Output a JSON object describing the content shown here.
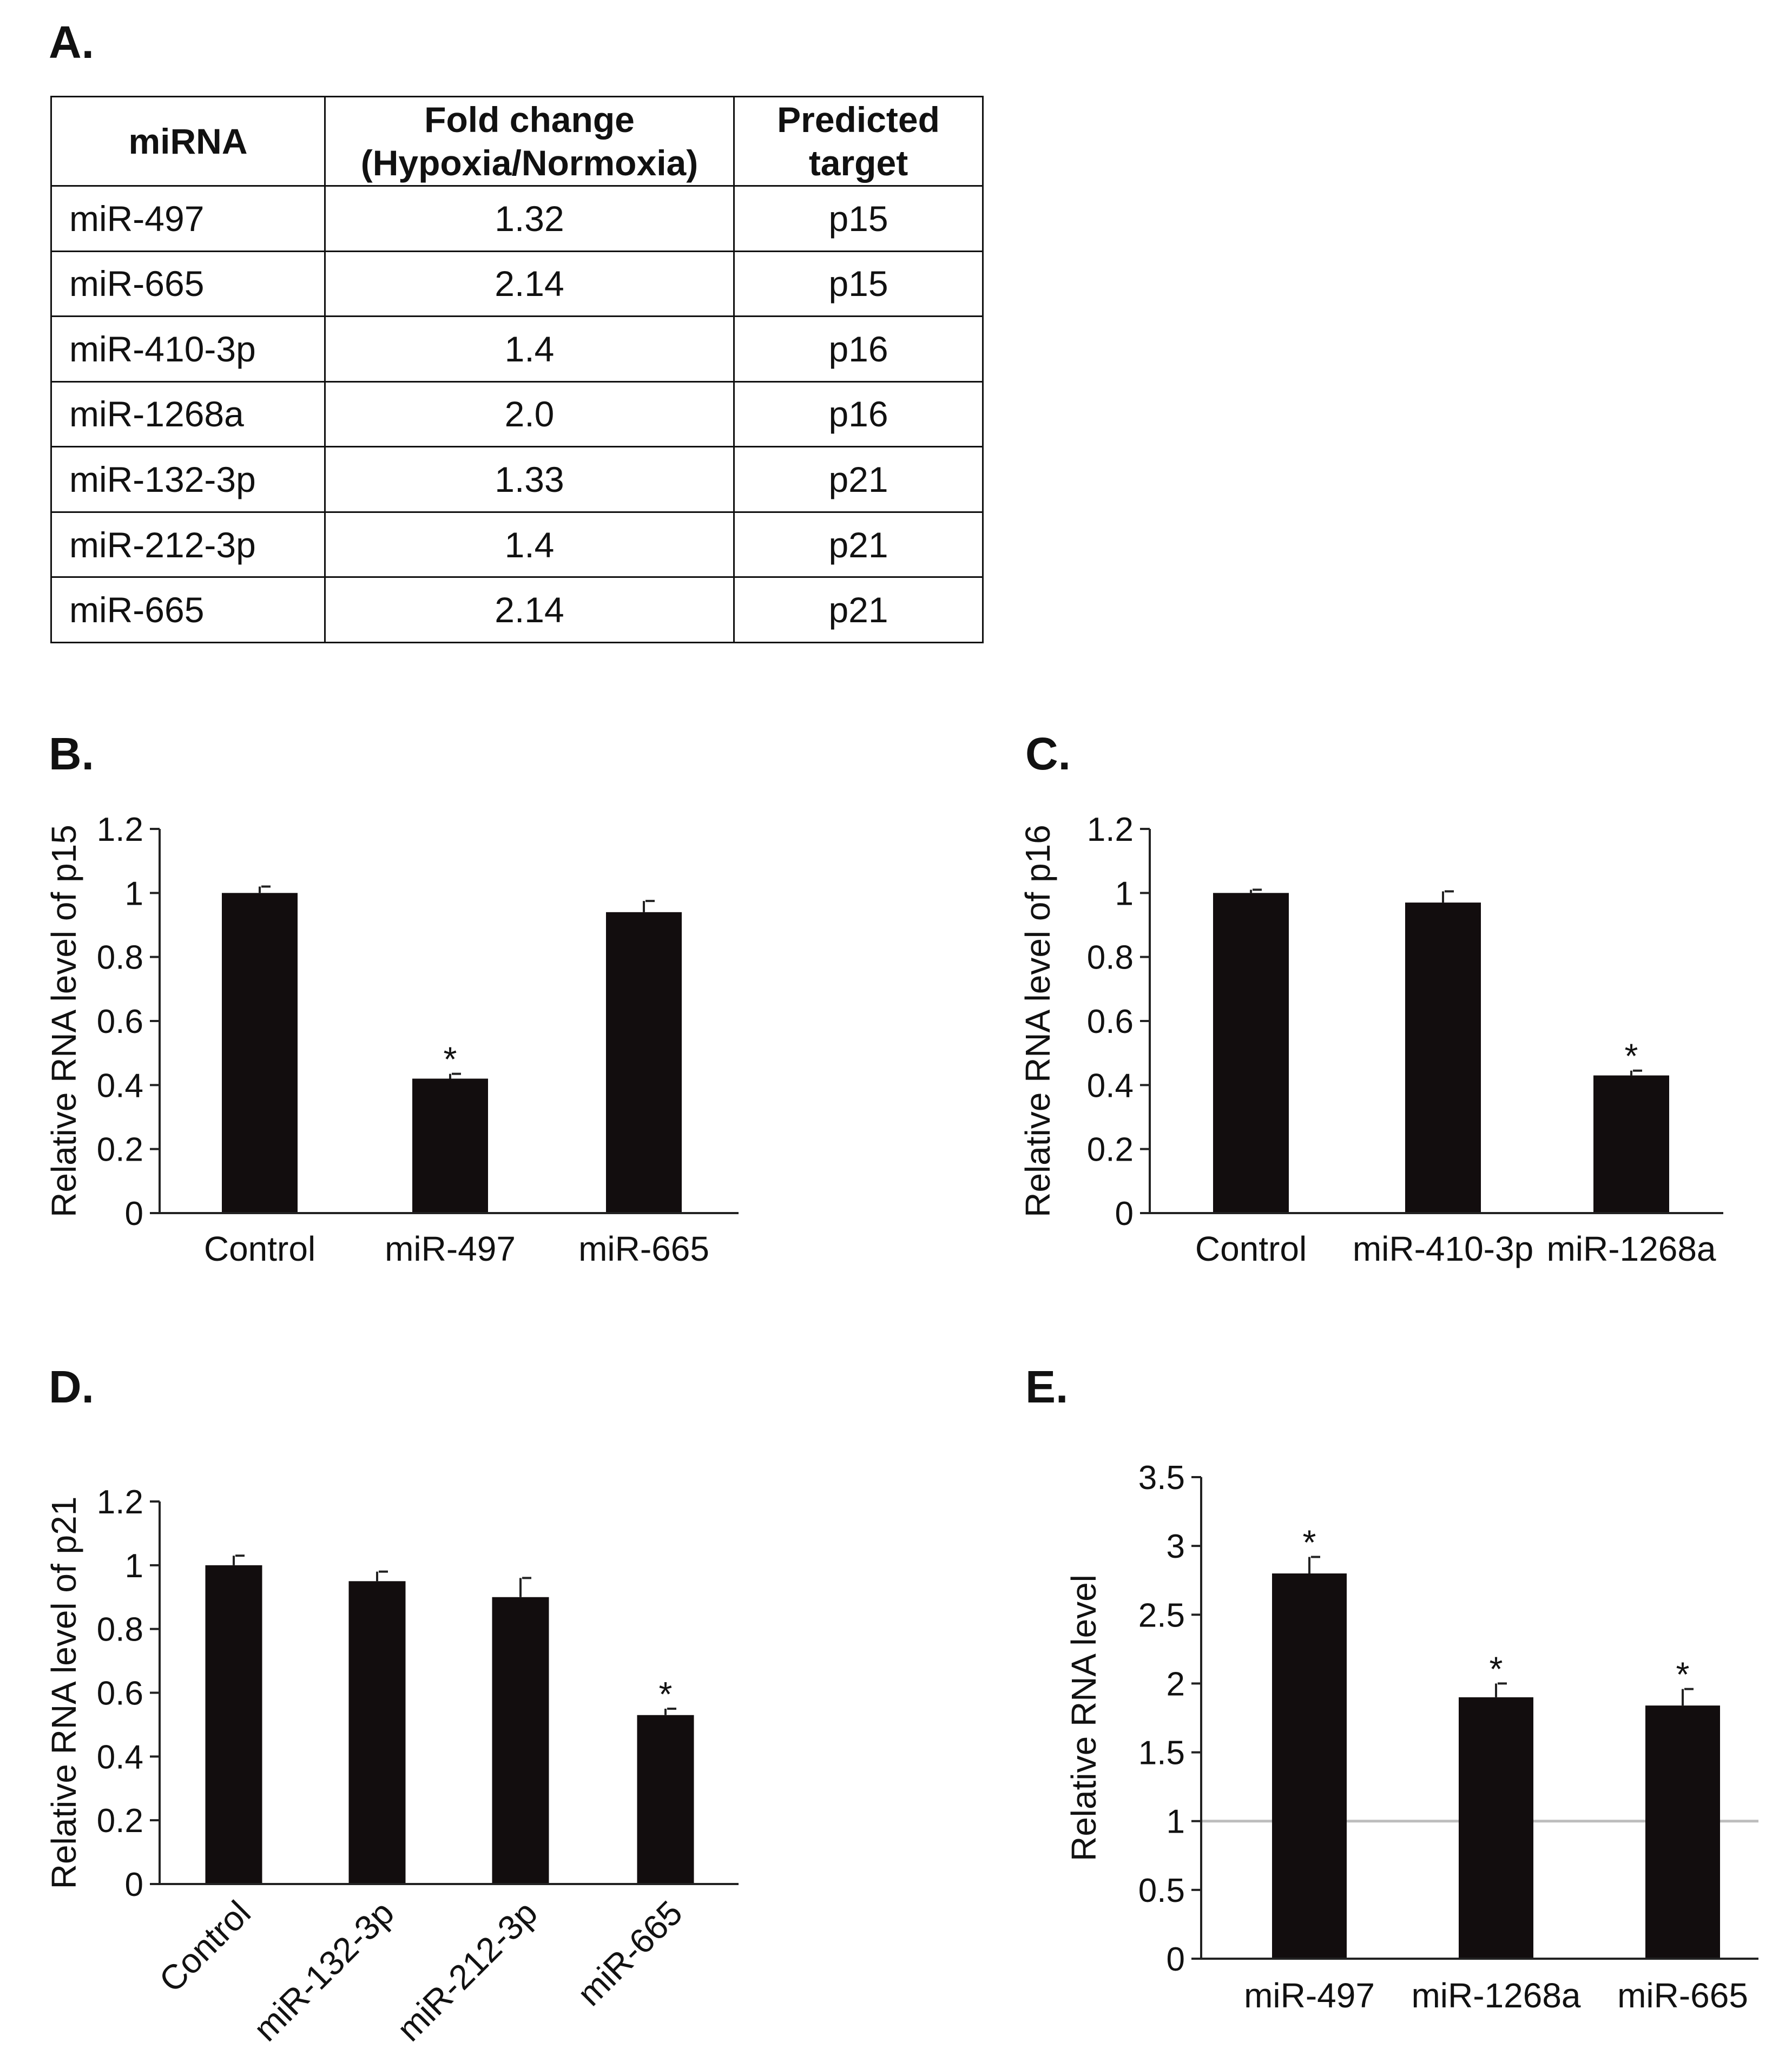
{
  "panels": {
    "a": "A.",
    "b": "B.",
    "c": "C.",
    "d": "D.",
    "e": "E."
  },
  "table": {
    "headers": [
      "miRNA",
      "Fold change",
      "(Hypoxia/Normoxia)",
      "Predicted",
      "target"
    ],
    "rows": [
      [
        "miR-497",
        "1.32",
        "p15"
      ],
      [
        "miR-665",
        "2.14",
        "p15"
      ],
      [
        "miR-410-3p",
        "1.4",
        "p16"
      ],
      [
        "miR-1268a",
        "2.0",
        "p16"
      ],
      [
        "miR-132-3p",
        "1.33",
        "p21"
      ],
      [
        "miR-212-3p",
        "1.4",
        "p21"
      ],
      [
        "miR-665",
        "2.14",
        "p21"
      ]
    ]
  },
  "colors": {
    "bar": "#120d0e",
    "axis": "#222222",
    "reference_line": "#bdbdbd"
  },
  "chart_data": [
    {
      "id": "B",
      "type": "bar",
      "ylabel": "Relative RNA level of p15",
      "categories": [
        "Control",
        "miR-497",
        "miR-665"
      ],
      "values": [
        1.0,
        0.42,
        0.94
      ],
      "errors": [
        0.02,
        0.015,
        0.035
      ],
      "significant": [
        false,
        true,
        false
      ],
      "star": "*",
      "ylim": [
        0,
        1.2
      ],
      "yticks": [
        "0",
        "0.2",
        "0.4",
        "0.6",
        "0.8",
        "1",
        "1.2"
      ]
    },
    {
      "id": "C",
      "type": "bar",
      "ylabel": "Relative RNA level of p16",
      "categories": [
        "Control",
        "miR-410-3p",
        "miR-1268a"
      ],
      "values": [
        1.0,
        0.97,
        0.43
      ],
      "errors": [
        0.01,
        0.035,
        0.015
      ],
      "significant": [
        false,
        false,
        true
      ],
      "star": "*",
      "ylim": [
        0,
        1.2
      ],
      "yticks": [
        "0",
        "0.2",
        "0.4",
        "0.6",
        "0.8",
        "1",
        "1.2"
      ]
    },
    {
      "id": "D",
      "type": "bar",
      "ylabel": "Relative RNA level of p21",
      "categories": [
        "Control",
        "miR-132-3p",
        "miR-212-3p",
        "miR-665"
      ],
      "values": [
        1.0,
        0.95,
        0.9,
        0.53
      ],
      "errors": [
        0.03,
        0.03,
        0.06,
        0.02
      ],
      "significant": [
        false,
        false,
        false,
        true
      ],
      "star": "*",
      "ylim": [
        0,
        1.2
      ],
      "yticks": [
        "0",
        "0.2",
        "0.4",
        "0.6",
        "0.8",
        "1",
        "1.2"
      ],
      "rotated_labels": true
    },
    {
      "id": "E",
      "type": "bar",
      "ylabel": "Relative RNA level",
      "categories": [
        "miR-497",
        "miR-1268a",
        "miR-665"
      ],
      "values": [
        2.8,
        1.9,
        1.84
      ],
      "errors": [
        0.12,
        0.1,
        0.12
      ],
      "significant": [
        true,
        true,
        true
      ],
      "star": "*",
      "ylim": [
        0,
        3.5
      ],
      "yticks": [
        "0",
        "0.5",
        "1",
        "1.5",
        "2",
        "2.5",
        "3",
        "3.5"
      ],
      "reference_line": 1
    }
  ]
}
